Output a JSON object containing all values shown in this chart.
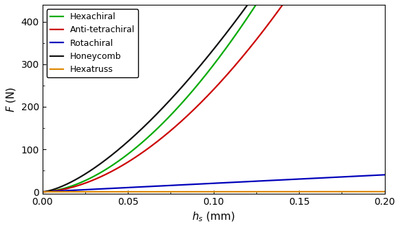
{
  "title": "",
  "xlabel": "$h_s$ (mm)",
  "ylabel": "$F$ (N)",
  "xlim": [
    0.0,
    0.2
  ],
  "ylim": [
    -5,
    440
  ],
  "yticks": [
    0,
    100,
    200,
    300,
    400
  ],
  "xticks": [
    0.0,
    0.05,
    0.1,
    0.15,
    0.2
  ],
  "series": [
    {
      "label": "Hexachiral",
      "color": "#00aa00",
      "coeff": 16800,
      "exponent": 1.75
    },
    {
      "label": "Anti-tetrachiral",
      "color": "#cc0000",
      "coeff": 14500,
      "exponent": 1.78
    },
    {
      "label": "Rotachiral",
      "color": "#0000bb",
      "coeff": 200,
      "exponent": 1.0
    },
    {
      "label": "Honeycomb",
      "color": "#111111",
      "coeff": 10600,
      "exponent": 1.5
    },
    {
      "label": "Hexatruss",
      "color": "#dd8800",
      "coeff": 2,
      "exponent": 1.0
    }
  ],
  "legend_loc": "upper left",
  "linewidth": 1.6,
  "figsize": [
    5.82,
    3.33
  ],
  "dpi": 100,
  "font_family": "DejaVu Sans"
}
